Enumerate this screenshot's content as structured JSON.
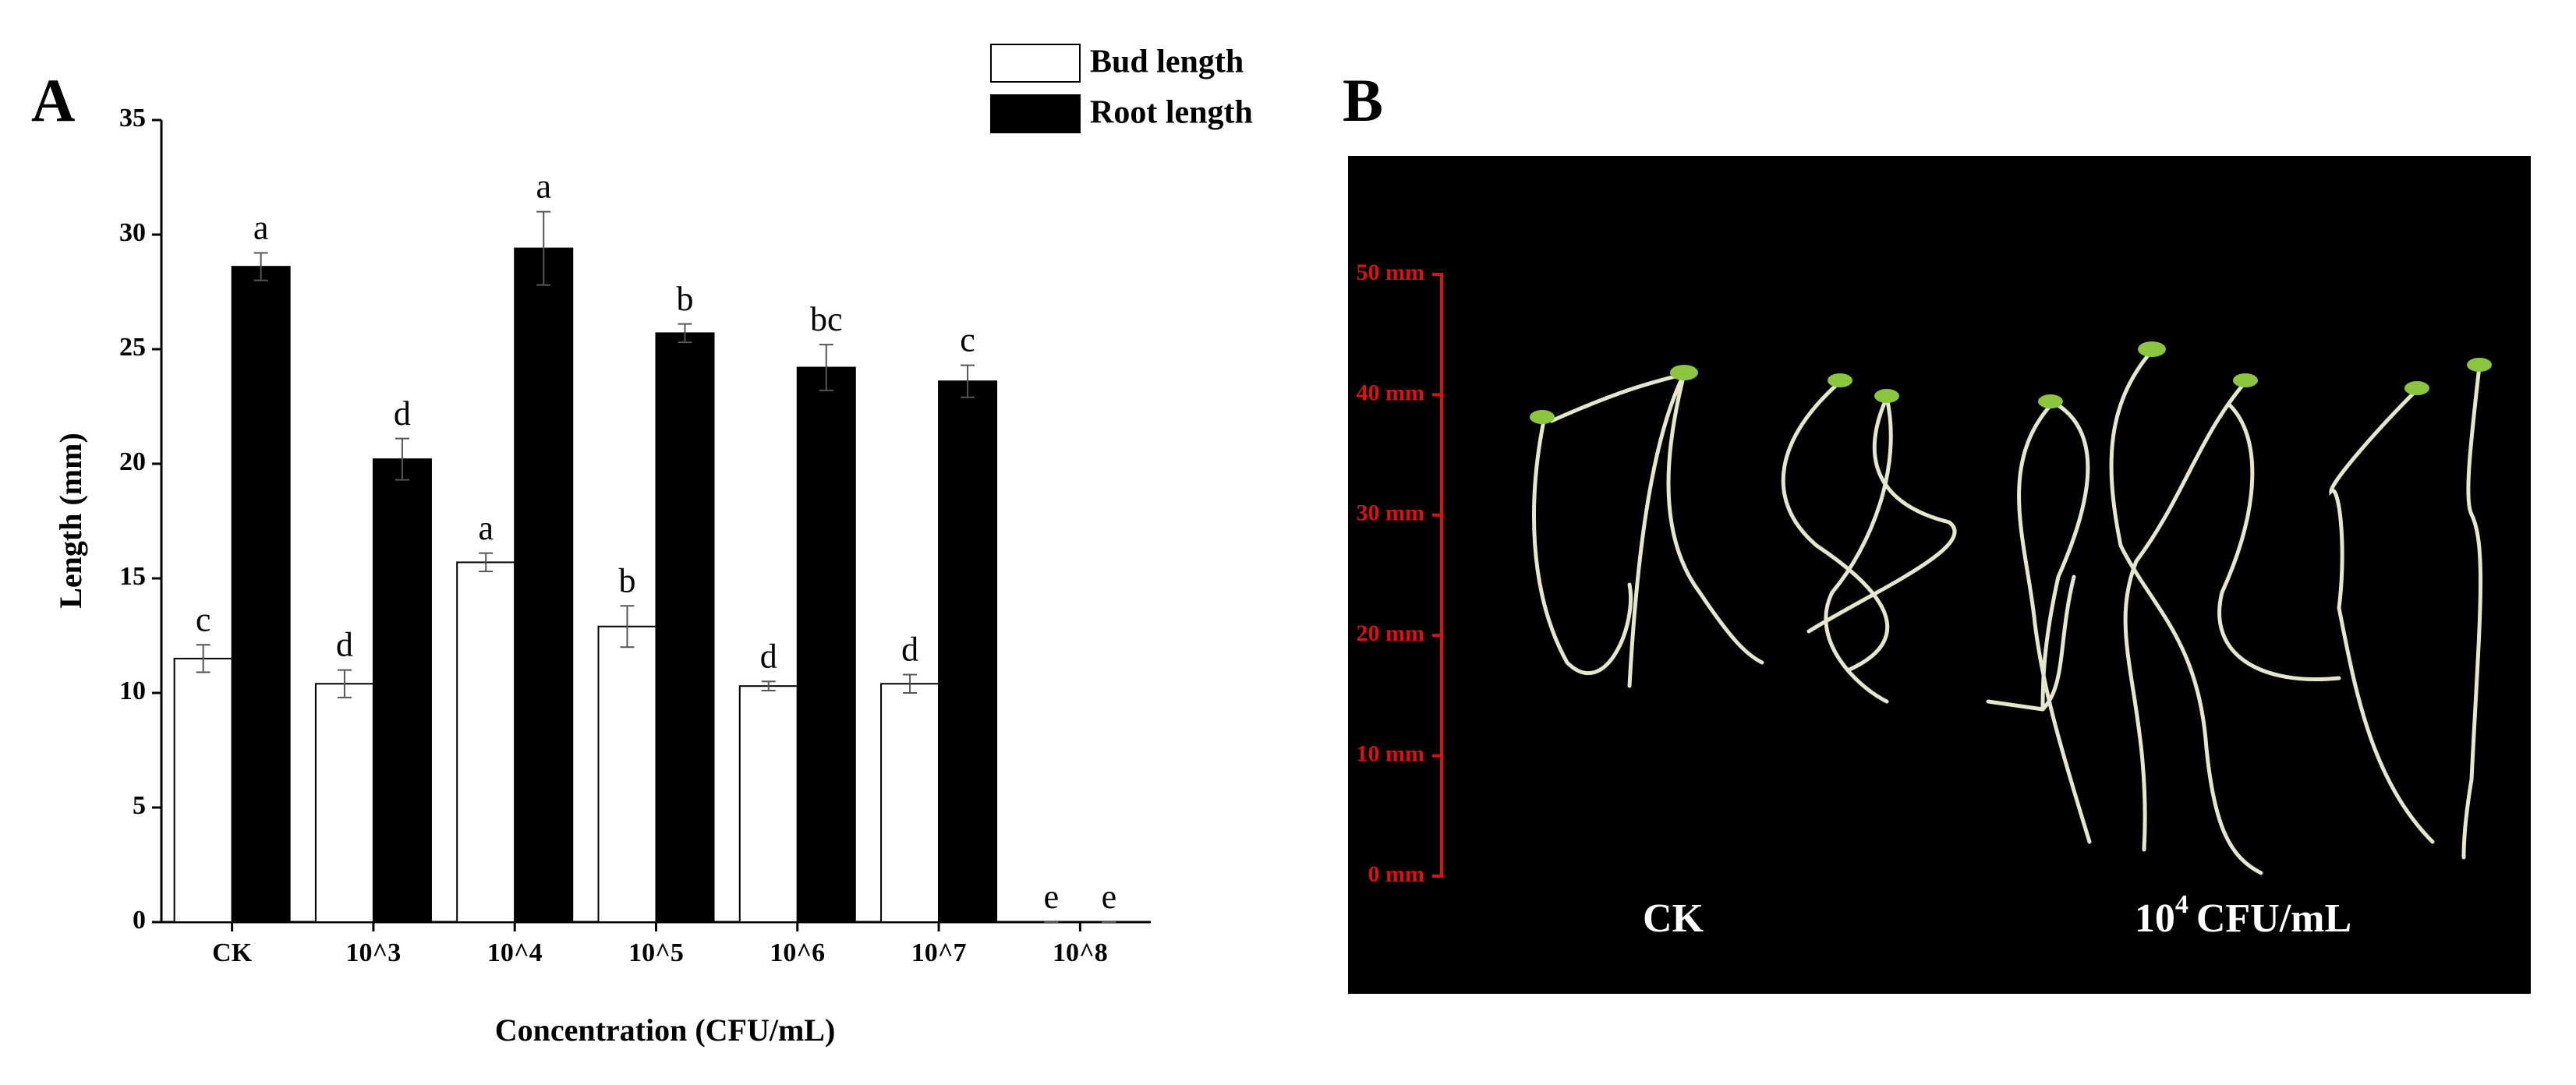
{
  "panel_labels": [
    "A",
    "B"
  ],
  "chart_data": {
    "type": "bar",
    "xlabel": "Concentration (CFU/mL)",
    "ylabel": "Length (mm)",
    "categories": [
      "CK",
      "10^3",
      "10^4",
      "10^5",
      "10^6",
      "10^7",
      "10^8"
    ],
    "series": [
      {
        "name": "Bud length",
        "color": "#ffffff",
        "values": [
          11.5,
          10.4,
          15.7,
          12.9,
          10.3,
          10.4,
          0
        ],
        "errors": [
          0.6,
          0.6,
          0.4,
          0.9,
          0.2,
          0.4,
          0
        ],
        "letters": [
          "c",
          "d",
          "a",
          "b",
          "d",
          "d",
          "e"
        ]
      },
      {
        "name": "Root length",
        "color": "#000000",
        "values": [
          28.6,
          20.2,
          29.4,
          25.7,
          24.2,
          23.6,
          0
        ],
        "errors": [
          0.6,
          0.9,
          1.6,
          0.4,
          1.0,
          0.7,
          0
        ],
        "letters": [
          "a",
          "d",
          "a",
          "b",
          "bc",
          "c",
          "e"
        ]
      }
    ],
    "ylim": [
      0,
      35
    ],
    "yticks": [
      0,
      5,
      10,
      15,
      20,
      25,
      30,
      35
    ]
  },
  "photo": {
    "scale_range": [
      0,
      50
    ],
    "scale_ticks": [
      {
        "value": 50,
        "label": "50 mm"
      },
      {
        "value": 40,
        "label": "40 mm"
      },
      {
        "value": 30,
        "label": "30 mm"
      },
      {
        "value": 20,
        "label": "20 mm"
      },
      {
        "value": 10,
        "label": "10 mm"
      },
      {
        "value": 0,
        "label": "0 mm"
      }
    ],
    "label_ck": "CK",
    "label_treat_base": "10",
    "label_treat_sup": "4",
    "label_treat_unit": "CFU/mL"
  }
}
